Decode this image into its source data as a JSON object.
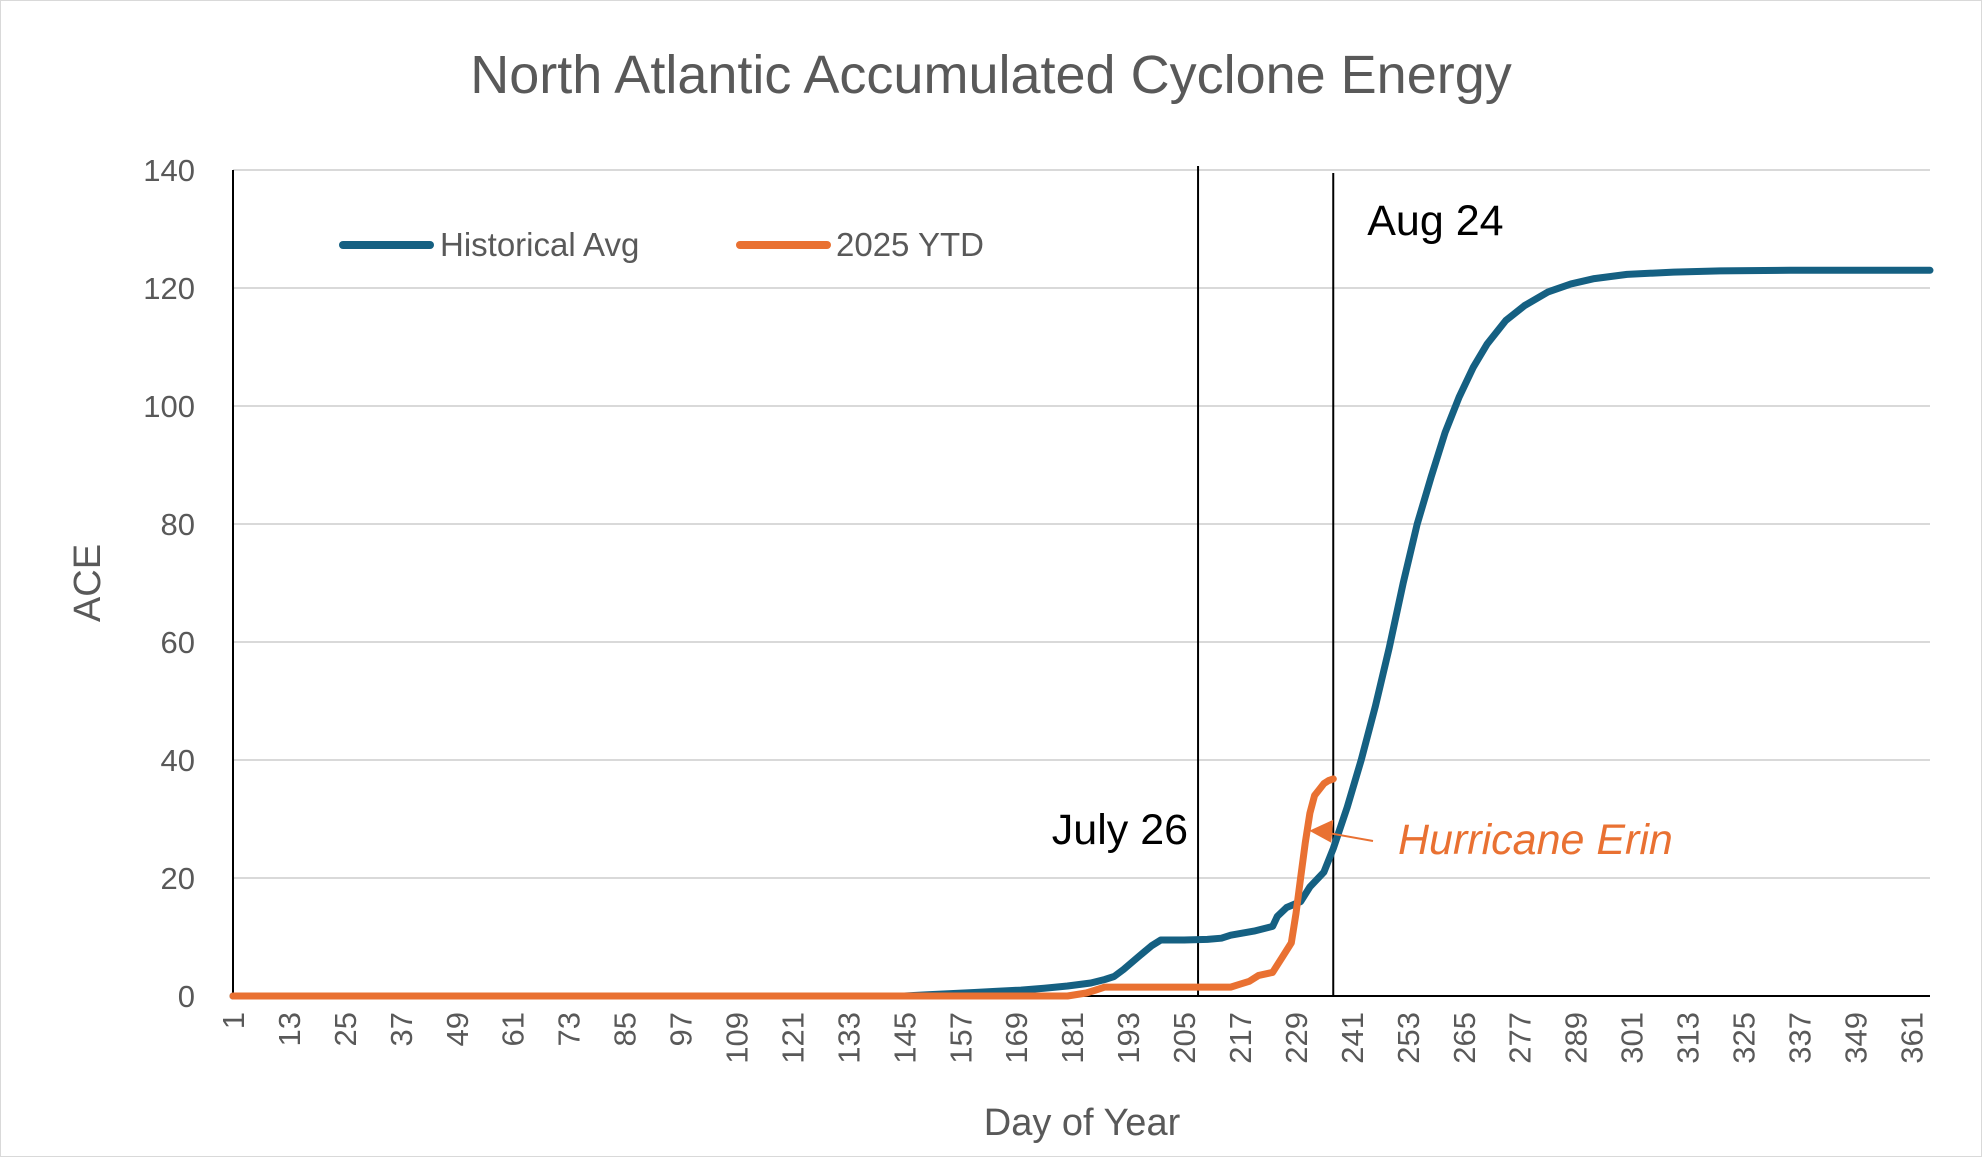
{
  "chart_data": {
    "type": "line",
    "title": "North Atlantic Accumulated Cyclone Energy",
    "xlabel": "Day of Year",
    "ylabel": "ACE",
    "xlim": [
      1,
      365
    ],
    "ylim": [
      0,
      140
    ],
    "yticks": [
      0,
      20,
      40,
      60,
      80,
      100,
      120,
      140
    ],
    "xticks": [
      1,
      13,
      25,
      37,
      49,
      61,
      73,
      85,
      97,
      109,
      121,
      133,
      145,
      157,
      169,
      181,
      193,
      205,
      217,
      229,
      241,
      253,
      265,
      277,
      289,
      301,
      313,
      325,
      337,
      349,
      361
    ],
    "grid": "horizontal",
    "legend_position": "top-left",
    "series": [
      {
        "name": "Historical Avg",
        "color": "#156082",
        "points": [
          [
            1,
            0
          ],
          [
            145,
            0
          ],
          [
            150,
            0.2
          ],
          [
            155,
            0.4
          ],
          [
            160,
            0.6
          ],
          [
            165,
            0.8
          ],
          [
            170,
            1.0
          ],
          [
            175,
            1.3
          ],
          [
            180,
            1.7
          ],
          [
            185,
            2.2
          ],
          [
            188,
            2.8
          ],
          [
            190,
            3.3
          ],
          [
            192,
            4.5
          ],
          [
            195,
            6.5
          ],
          [
            198,
            8.5
          ],
          [
            200,
            9.5
          ],
          [
            205,
            9.5
          ],
          [
            210,
            9.6
          ],
          [
            213,
            9.8
          ],
          [
            215,
            10.3
          ],
          [
            220,
            11.0
          ],
          [
            224,
            11.8
          ],
          [
            225,
            13.5
          ],
          [
            227,
            15.0
          ],
          [
            230,
            16.0
          ],
          [
            232,
            18.5
          ],
          [
            235,
            21.0
          ],
          [
            237,
            25.0
          ],
          [
            240,
            32.0
          ],
          [
            243,
            40.0
          ],
          [
            246,
            49.0
          ],
          [
            249,
            59.0
          ],
          [
            252,
            70.0
          ],
          [
            255,
            80.0
          ],
          [
            258,
            88.0
          ],
          [
            261,
            95.5
          ],
          [
            264,
            101.5
          ],
          [
            267,
            106.5
          ],
          [
            270,
            110.5
          ],
          [
            274,
            114.5
          ],
          [
            278,
            117.0
          ],
          [
            283,
            119.3
          ],
          [
            288,
            120.7
          ],
          [
            293,
            121.6
          ],
          [
            300,
            122.3
          ],
          [
            310,
            122.7
          ],
          [
            320,
            122.9
          ],
          [
            335,
            123.0
          ],
          [
            365,
            123.0
          ]
        ]
      },
      {
        "name": "2025 YTD",
        "color": "#E97132",
        "points": [
          [
            1,
            0
          ],
          [
            180,
            0
          ],
          [
            184,
            0.5
          ],
          [
            186,
            1.0
          ],
          [
            188,
            1.5
          ],
          [
            195,
            1.5
          ],
          [
            205,
            1.5
          ],
          [
            215,
            1.5
          ],
          [
            217,
            2.0
          ],
          [
            219,
            2.5
          ],
          [
            221,
            3.5
          ],
          [
            224,
            4.0
          ],
          [
            226,
            6.5
          ],
          [
            228,
            9.0
          ],
          [
            229,
            14.0
          ],
          [
            230,
            20.0
          ],
          [
            231,
            26.0
          ],
          [
            232,
            31.0
          ],
          [
            233,
            34.0
          ],
          [
            234,
            35.0
          ],
          [
            235,
            36.0
          ],
          [
            236,
            36.5
          ],
          [
            237,
            36.8
          ]
        ]
      }
    ],
    "vertical_markers": [
      {
        "x": 208,
        "label": "July 26"
      },
      {
        "x": 237,
        "label": "Aug 24"
      }
    ],
    "annotations": [
      {
        "text": "Hurricane Erin",
        "color": "#E97132",
        "arrow_to": [
          231,
          28
        ]
      }
    ]
  }
}
